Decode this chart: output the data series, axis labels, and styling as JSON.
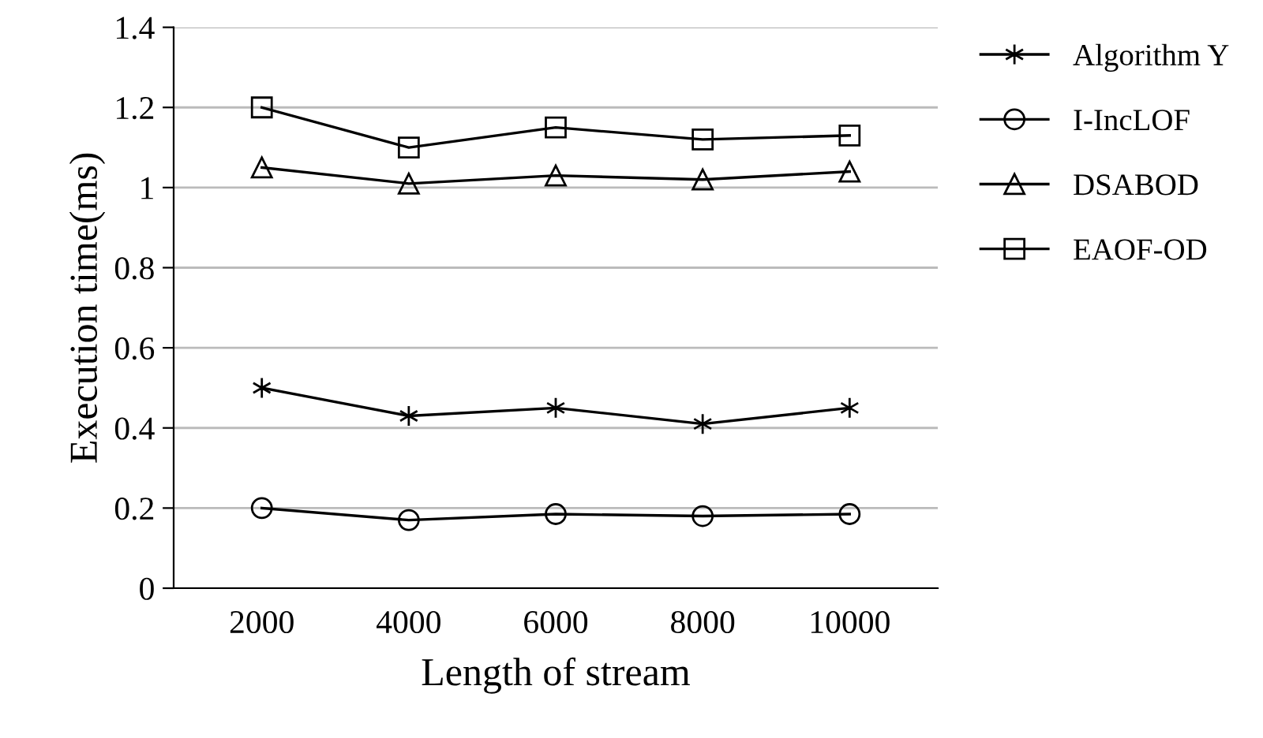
{
  "chart_data": {
    "type": "line",
    "xlabel": "Length of stream",
    "ylabel": "Execution time(ms)",
    "categories": [
      "2000",
      "4000",
      "6000",
      "8000",
      "10000"
    ],
    "series": [
      {
        "name": "Algorithm Y",
        "color": "#000000",
        "marker": "cross",
        "values": [
          0.5,
          0.43,
          0.45,
          0.41,
          0.45
        ]
      },
      {
        "name": "I-IncLOF",
        "color": "#000000",
        "marker": "circle",
        "values": [
          0.2,
          0.17,
          0.185,
          0.18,
          0.185
        ]
      },
      {
        "name": "DSABOD",
        "color": "#000000",
        "marker": "triangle",
        "values": [
          1.05,
          1.01,
          1.03,
          1.02,
          1.04
        ]
      },
      {
        "name": "EAOF-OD",
        "color": "#000000",
        "marker": "square",
        "values": [
          1.2,
          1.1,
          1.15,
          1.12,
          1.13
        ]
      }
    ],
    "ylim": [
      0,
      1.4
    ],
    "yticks": [
      0,
      {
        "value": 0.2,
        "label": "0.2"
      },
      {
        "value": 0.4,
        "label": "0.4"
      },
      {
        "value": 0.6,
        "label": "0.6"
      },
      {
        "value": 0.8,
        "label": "0.8"
      },
      1,
      {
        "value": 1.2,
        "label": "1.2"
      },
      {
        "value": 1.4,
        "label": "1.4"
      }
    ],
    "grid": "y",
    "legend": "top right",
    "line_style": "solid"
  }
}
